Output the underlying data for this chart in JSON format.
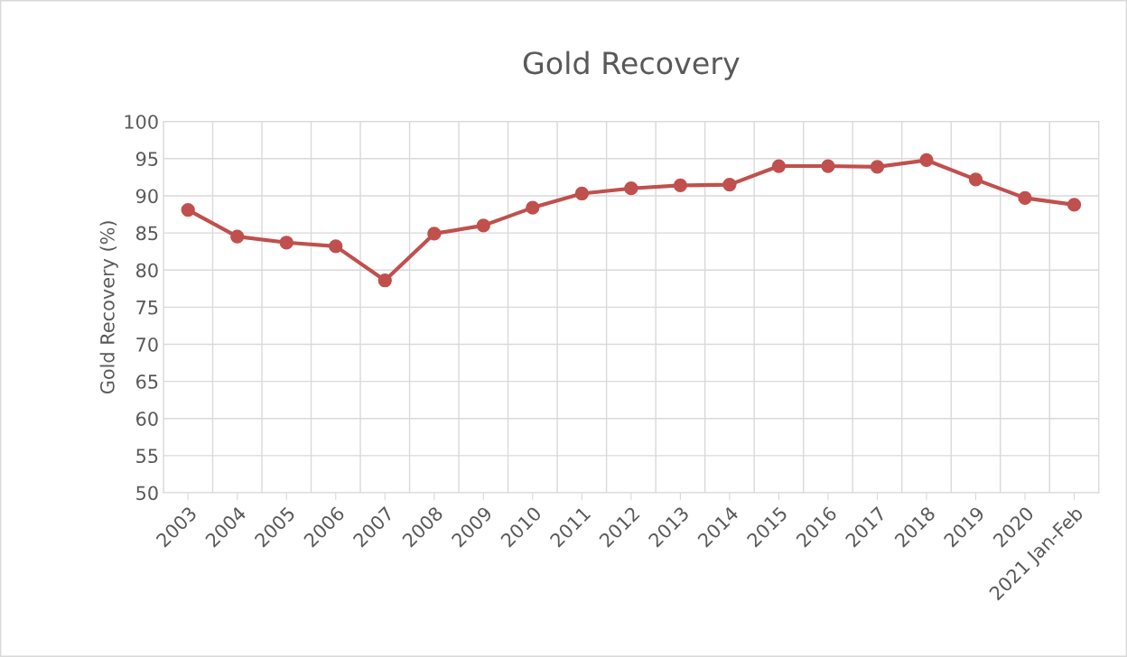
{
  "chart_data": {
    "type": "line",
    "title": "Gold Recovery",
    "ylabel": "Gold Recovery (%)",
    "categories": [
      "2003",
      "2004",
      "2005",
      "2006",
      "2007",
      "2008",
      "2009",
      "2010",
      "2011",
      "2012",
      "2013",
      "2014",
      "2015",
      "2016",
      "2017",
      "2018",
      "2019",
      "2020",
      "2021 Jan-Feb"
    ],
    "series": [
      {
        "color": "#c0504d",
        "values": [
          88.1,
          84.5,
          83.7,
          83.2,
          78.6,
          84.9,
          86.0,
          88.4,
          90.3,
          91.0,
          91.4,
          91.5,
          94.0,
          94.0,
          93.9,
          94.8,
          92.2,
          89.7,
          88.8
        ]
      }
    ],
    "ylim": [
      50,
      100
    ],
    "yticks": [
      50,
      55,
      60,
      65,
      70,
      75,
      80,
      85,
      90,
      95,
      100
    ],
    "grid": true,
    "marker": "circle",
    "line_style": "solid"
  }
}
